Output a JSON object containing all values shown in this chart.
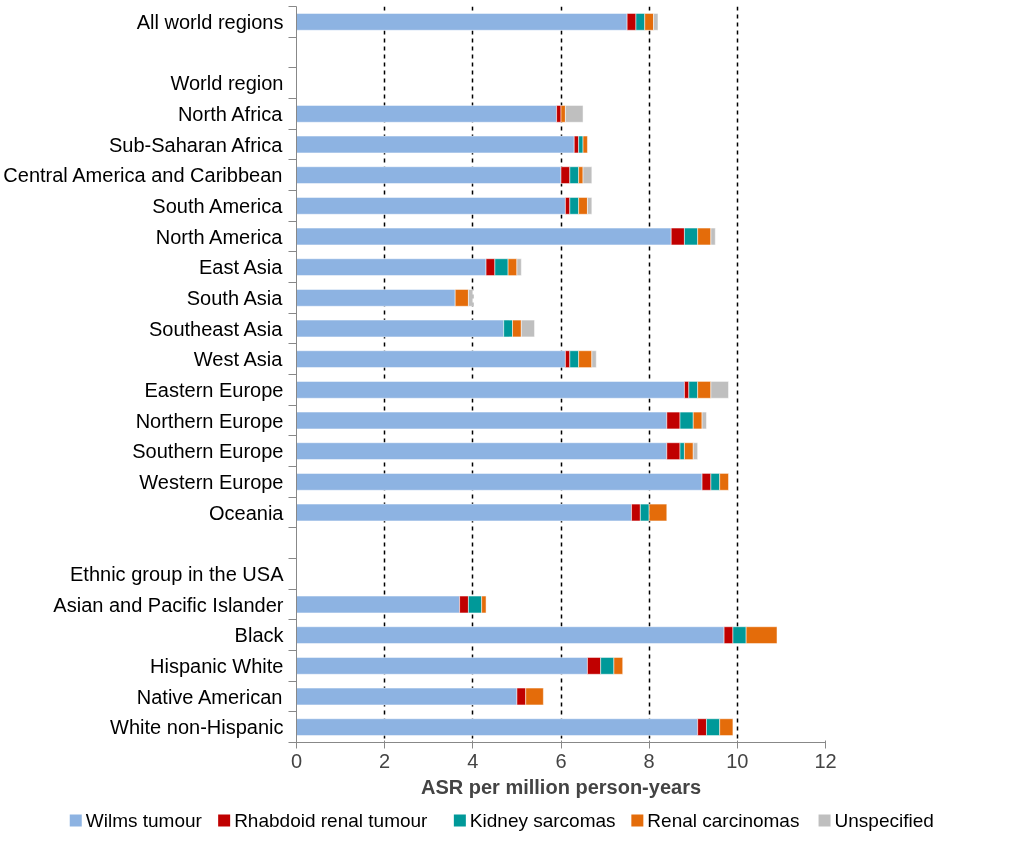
{
  "chart_data": {
    "type": "bar",
    "orientation": "horizontal",
    "stacked": true,
    "categories": [
      "All world regions",
      null,
      "World region",
      "North Africa",
      "Sub-Saharan Africa",
      "Central America and Caribbean",
      "South America",
      "North America",
      "East Asia",
      "South Asia",
      "Southeast Asia",
      "West Asia",
      "Eastern Europe",
      "Northern Europe",
      "Southern Europe",
      "Western Europe",
      "Oceania",
      null,
      "Ethnic group in the USA",
      "Asian and Pacific Islander",
      "Black",
      "Hispanic White",
      "Native American",
      "White non-Hispanic"
    ],
    "series": [
      {
        "name": "Wilms tumour",
        "color": "#8db3e2",
        "values": [
          7.5,
          null,
          null,
          5.9,
          6.3,
          6.0,
          6.1,
          8.5,
          4.3,
          3.6,
          4.7,
          6.1,
          8.8,
          8.4,
          8.4,
          9.2,
          7.6,
          null,
          null,
          3.7,
          9.7,
          6.6,
          5.0,
          9.1
        ]
      },
      {
        "name": "Rhabdoid renal tumour",
        "color": "#c00000",
        "values": [
          0.2,
          null,
          null,
          0.1,
          0.1,
          0.2,
          0.1,
          0.3,
          0.2,
          null,
          null,
          0.1,
          0.1,
          0.3,
          0.3,
          0.2,
          0.2,
          null,
          null,
          0.2,
          0.2,
          0.3,
          0.2,
          0.2
        ]
      },
      {
        "name": "Kidney sarcomas",
        "color": "#009999",
        "values": [
          0.2,
          null,
          null,
          null,
          0.1,
          0.2,
          0.2,
          0.3,
          0.3,
          null,
          0.2,
          0.2,
          0.2,
          0.3,
          0.1,
          0.2,
          0.2,
          null,
          null,
          0.3,
          0.3,
          0.3,
          null,
          0.3
        ]
      },
      {
        "name": "Renal carcinomas",
        "color": "#e46c0a",
        "values": [
          0.2,
          null,
          null,
          0.1,
          0.1,
          0.1,
          0.2,
          0.3,
          0.2,
          0.3,
          0.2,
          0.3,
          0.3,
          0.2,
          0.2,
          0.2,
          0.4,
          null,
          null,
          0.1,
          0.7,
          0.2,
          0.4,
          0.3
        ]
      },
      {
        "name": "Unspecified",
        "color": "#bfbfbf",
        "values": [
          0.1,
          null,
          null,
          0.4,
          null,
          0.2,
          0.1,
          0.1,
          0.1,
          0.1,
          0.3,
          0.1,
          0.4,
          0.1,
          0.1,
          null,
          null,
          null,
          null,
          null,
          null,
          null,
          null,
          null
        ]
      }
    ],
    "xlabel": "ASR per million person-years",
    "xlim": [
      0,
      12
    ],
    "xticks": [
      0,
      2,
      4,
      6,
      8,
      10,
      12
    ],
    "grid": "x",
    "legend": "bottom"
  }
}
